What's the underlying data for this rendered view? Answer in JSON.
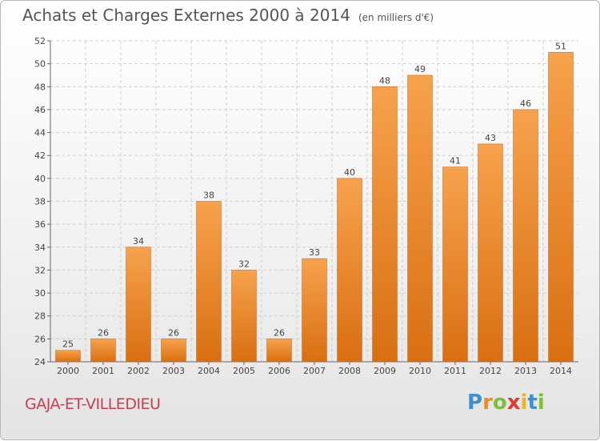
{
  "chart_data": {
    "type": "bar",
    "title": "Achats et Charges Externes 2000 à 2014",
    "subtitle": "(en milliers d'€)",
    "categories": [
      "2000",
      "2001",
      "2002",
      "2003",
      "2004",
      "2005",
      "2006",
      "2007",
      "2008",
      "2009",
      "2010",
      "2011",
      "2012",
      "2013",
      "2014"
    ],
    "values": [
      25,
      26,
      34,
      26,
      38,
      32,
      26,
      33,
      40,
      48,
      49,
      41,
      43,
      46,
      51
    ],
    "ylim": [
      24,
      52
    ],
    "yticks": [
      24,
      26,
      28,
      30,
      32,
      34,
      36,
      38,
      40,
      42,
      44,
      46,
      48,
      50,
      52
    ],
    "xlabel": "",
    "ylabel": "",
    "grid": true,
    "bar_color": "#f0953f"
  },
  "commune": "GAJA-ET-VILLEDIEU",
  "brand": {
    "letters": [
      "P",
      "r",
      "o",
      "x",
      "i",
      "t",
      "i"
    ],
    "colors": [
      "#3f8fd2",
      "#f08a1c",
      "#7cbf3a",
      "#e23a2e",
      "#f0b51c",
      "#3f8fd2",
      "#7cbf3a"
    ]
  }
}
